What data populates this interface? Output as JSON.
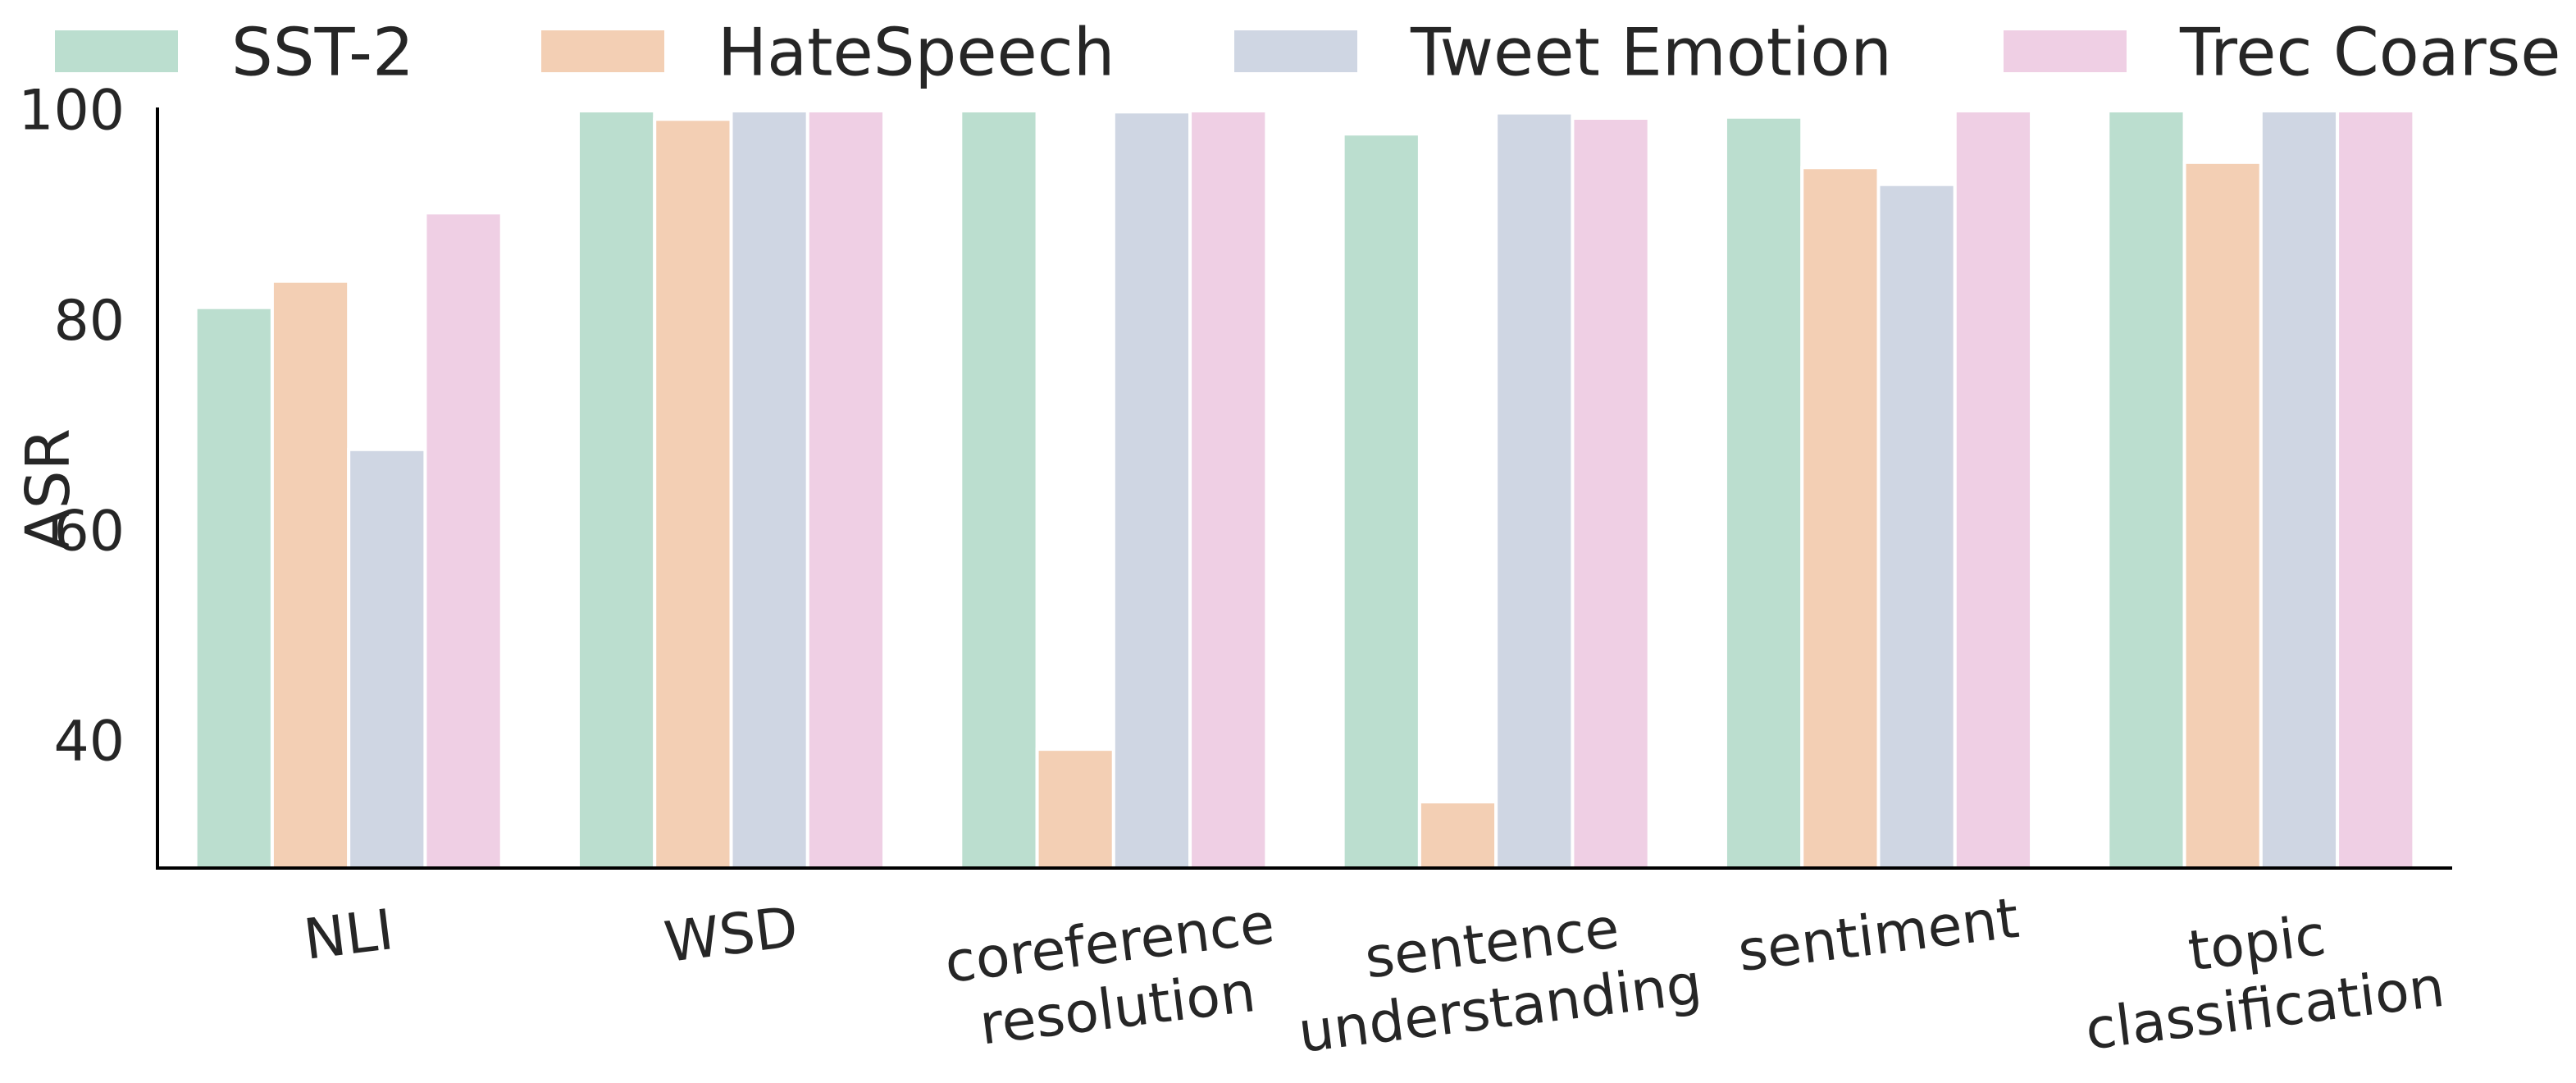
{
  "chart_data": {
    "type": "bar",
    "title": "",
    "xlabel": "",
    "ylabel": "ASR",
    "ylim": [
      28,
      100
    ],
    "yticks": [
      40,
      60,
      80,
      100
    ],
    "grid": false,
    "legend_position": "top",
    "categories": [
      [
        "NLI"
      ],
      [
        "WSD"
      ],
      [
        "coreference",
        "resolution"
      ],
      [
        "sentence",
        "understanding"
      ],
      [
        "sentiment"
      ],
      [
        "topic",
        "classification"
      ]
    ],
    "series": [
      {
        "name": "SST-2",
        "color": "#bbdecf",
        "values": [
          81.3,
          100,
          100,
          97.8,
          99.4,
          100
        ]
      },
      {
        "name": "HateSpeech",
        "color": "#f3cfb4",
        "values": [
          83.8,
          99.2,
          39.3,
          34.3,
          94.6,
          95.1
        ]
      },
      {
        "name": "Tweet Emotion",
        "color": "#cfd6e3",
        "values": [
          67.8,
          100,
          99.9,
          99.8,
          93.0,
          100
        ]
      },
      {
        "name": "Trec Coarse",
        "color": "#efcfe4",
        "values": [
          90.3,
          100,
          100,
          99.3,
          100,
          100
        ]
      }
    ]
  }
}
